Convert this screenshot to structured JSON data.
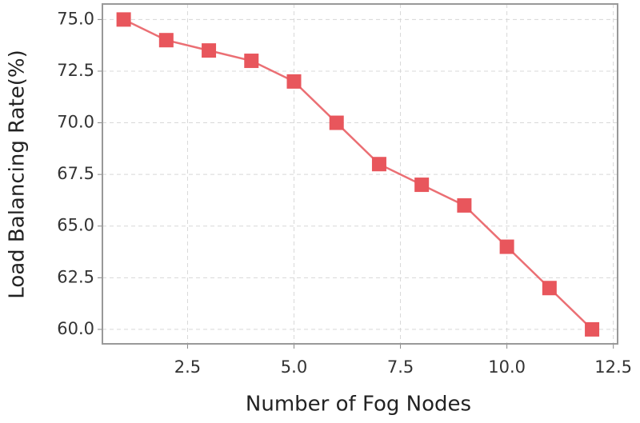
{
  "chart_data": {
    "type": "line",
    "x_label": "Number of Fog Nodes",
    "y_label": "Load Balancing Rate(%)",
    "x": [
      1,
      2,
      3,
      4,
      5,
      6,
      7,
      8,
      9,
      10,
      11,
      12
    ],
    "series": [
      {
        "name": "Load Balancing Rate",
        "color": "#e8565c",
        "values": [
          75,
          74,
          73.5,
          73,
          72,
          70,
          68,
          67,
          66,
          64,
          62,
          60
        ]
      }
    ],
    "xlim": [
      0.5,
      12.6
    ],
    "xticks": [
      2.5,
      {
        "value": 5,
        "label": "5.0"
      },
      7.5,
      {
        "value": 10,
        "label": "10.0"
      },
      12.5
    ],
    "ylim": [
      59.3,
      75.75
    ],
    "yticks": [
      {
        "value": 60,
        "label": "60.0"
      },
      62.5,
      {
        "value": 65,
        "label": "65.0"
      },
      67.5,
      {
        "value": 70,
        "label": "70.0"
      },
      72.5,
      {
        "value": 75,
        "label": "75.0"
      }
    ],
    "grid": true
  }
}
